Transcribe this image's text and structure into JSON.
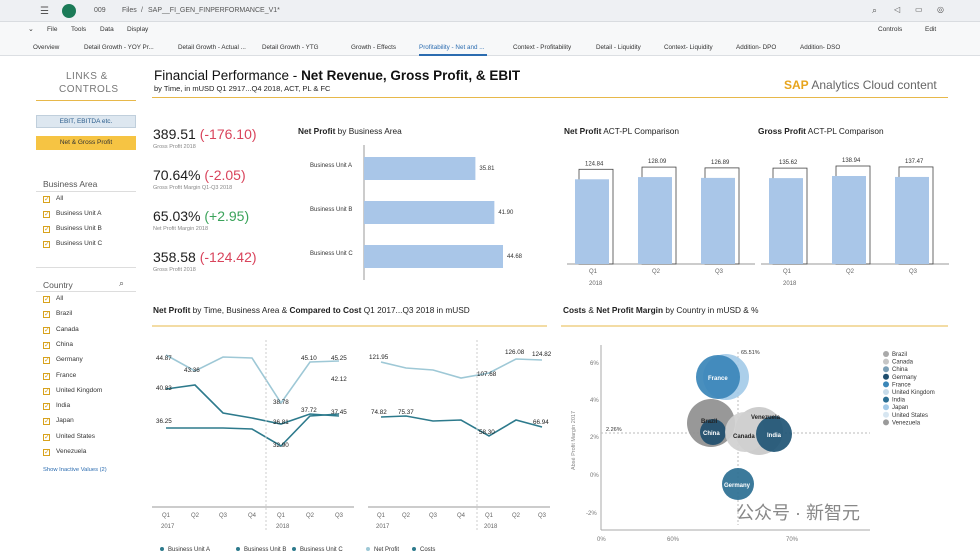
{
  "shell": {
    "count": "009",
    "files": "Files",
    "sep": "/",
    "file_name": "SAP__FI_GEN_FINPERFORMANCE_V1*"
  },
  "menu": {
    "items": [
      "File",
      "Tools",
      "Data",
      "Display"
    ],
    "controls": "Controls",
    "edit": "Edit"
  },
  "tabs": [
    "Overview",
    "Detail Growth - YOY Pr...",
    "Detail Growth - Actual ...",
    "Detail Growth - YTG",
    "Growth - Effects",
    "Profitability - Net and ...",
    "Context - Profitability",
    "Detail - Liquidity",
    "Context- Liquidity",
    "Addition- DPO",
    "Addition- DSO"
  ],
  "left": {
    "title1": "LINKS &",
    "title2": "CONTROLS",
    "btn1": "EBIT, EBITDA etc.",
    "btn2": "Net & Gross Profit",
    "ba_title": "Business Area",
    "ba_items": [
      "All",
      "Business Unit A",
      "Business Unit B",
      "Business Unit C"
    ],
    "country_title": "Country",
    "countries": [
      "All",
      "Brazil",
      "Canada",
      "China",
      "Germany",
      "France",
      "United Kingdom",
      "India",
      "Japan",
      "United States",
      "Venezuela"
    ],
    "show_inactive": "Show Inactive Values (2)"
  },
  "header": {
    "title_pre": "Financial Performance - ",
    "title_bold": "Net Revenue, Gross Profit, & EBIT",
    "subtitle": "by Time, in mUSD Q1 2917...Q4 2018, ACT, PL & FC",
    "brand_sap": "SAP",
    "brand_rest": " Analytics Cloud content"
  },
  "kpis": [
    {
      "value": "389.51",
      "delta": "(-176.10)",
      "sign": "neg",
      "label": "Gross Profit 2018"
    },
    {
      "value": "70.64%",
      "delta": "(-2.05)",
      "sign": "neg",
      "label": "Gross Profit Margin Q1-Q3 2018"
    },
    {
      "value": "65.03%",
      "delta": "(+2.95)",
      "sign": "pos",
      "label": "Net Profit Margin 2018"
    },
    {
      "value": "358.58",
      "delta": "(-124.42)",
      "sign": "neg",
      "label": "Gross Profit 2018"
    }
  ],
  "colors": {
    "accent": "#e7b84a",
    "bar": "#a9c6e8",
    "bar_stroke": "#7fa5d1",
    "line_dark": "#2d7a8c",
    "line_light": "#9ec8d6"
  },
  "chart_data": [
    {
      "type": "bar",
      "title_bold": "Net Profit",
      "title_rest": " by Business Area",
      "orientation": "horizontal",
      "categories": [
        "Business Unit A",
        "Business Unit B",
        "Business Unit C"
      ],
      "values": [
        35.81,
        41.9,
        44.68
      ]
    },
    {
      "type": "bar",
      "title_bold": "Net Profit",
      "title_rest": " ACT-PL Comparison",
      "categories": [
        "Q1",
        "Q2",
        "Q3"
      ],
      "year": "2018",
      "series": [
        {
          "values": [
            124.84,
            128.09,
            126.89
          ]
        }
      ],
      "ylim": [
        0,
        140
      ]
    },
    {
      "type": "bar",
      "title_bold": "Gross Profit",
      "title_rest": " ACT-PL Comparison",
      "categories": [
        "Q1",
        "Q2",
        "Q3"
      ],
      "year": "2018",
      "series": [
        {
          "values": [
            135.62,
            138.94,
            137.47
          ]
        }
      ],
      "ylim": [
        0,
        150
      ]
    },
    {
      "type": "line",
      "title_parts": [
        "Net Profit",
        " by Time, Business Area & ",
        "Compared to Cost",
        " Q1 2017...Q3 2018 in mUSD"
      ],
      "x": [
        "Q1",
        "Q2",
        "Q3",
        "Q4",
        "Q1",
        "Q2",
        "Q3"
      ],
      "years": [
        "2017",
        "2018"
      ],
      "series": [
        {
          "name": "Business Unit A",
          "values": [
            44.87,
            43.36,
            null,
            null,
            38.78,
            45.1,
            45.25
          ]
        },
        {
          "name": "Business Unit B",
          "values": [
            40.83,
            null,
            null,
            null,
            36.81,
            37.72,
            42.12
          ]
        },
        {
          "name": "Business Unit C",
          "values": [
            36.25,
            null,
            null,
            null,
            32.9,
            37.45,
            37.45
          ]
        }
      ],
      "labels": [
        "44.87",
        "43.36",
        "40.83",
        "36.25",
        "38.78",
        "36.81",
        "32.90",
        "45.10",
        "37.72",
        "45.25",
        "42.12",
        "37.45"
      ]
    },
    {
      "type": "line",
      "x": [
        "Q1",
        "Q2",
        "Q3",
        "Q4",
        "Q1",
        "Q2",
        "Q3"
      ],
      "years": [
        "2017",
        "2018"
      ],
      "series": [
        {
          "name": "Net Profit",
          "values": [
            121.95,
            null,
            null,
            107.68,
            null,
            126.08,
            124.82
          ]
        },
        {
          "name": "Costs",
          "values": [
            74.82,
            75.37,
            null,
            null,
            58.3,
            null,
            66.94
          ]
        }
      ],
      "labels": [
        "121.95",
        "107.68",
        "126.08",
        "124.82",
        "74.82",
        "75.37",
        "58.30",
        "66.94"
      ]
    },
    {
      "type": "scatter",
      "title_bold1": "Costs",
      "title_mid": " & ",
      "title_bold2": "Net Profit Margin",
      "title_rest": " by Country in mUSD & %",
      "ylabel": "Absé Profit Margin 2017",
      "yticks": [
        "6%",
        "4%",
        "2%",
        "0%",
        "-2%"
      ],
      "xticks": [
        "0%",
        "60%",
        "70%"
      ],
      "annotations": [
        "65.51%",
        "2.26%"
      ],
      "points": [
        {
          "name": "France",
          "label": "France"
        },
        {
          "name": "Brazil",
          "label": "Brazil"
        },
        {
          "name": "China",
          "label": "China"
        },
        {
          "name": "Venezuela",
          "label": "Venezuela"
        },
        {
          "name": "Canada",
          "label": "Canada"
        },
        {
          "name": "India",
          "label": "India"
        },
        {
          "name": "Germany",
          "label": "Germany"
        }
      ],
      "legend": [
        "Brazil",
        "Canada",
        "China",
        "Germany",
        "France",
        "United Kingdom",
        "India",
        "Japan",
        "United States",
        "Venezuela"
      ]
    }
  ],
  "bottom_legend": [
    "Business Unit A",
    "Business Unit B",
    "Business Unit C",
    "Net Profit",
    "Costs"
  ],
  "watermark": "公众号 · 新智元"
}
